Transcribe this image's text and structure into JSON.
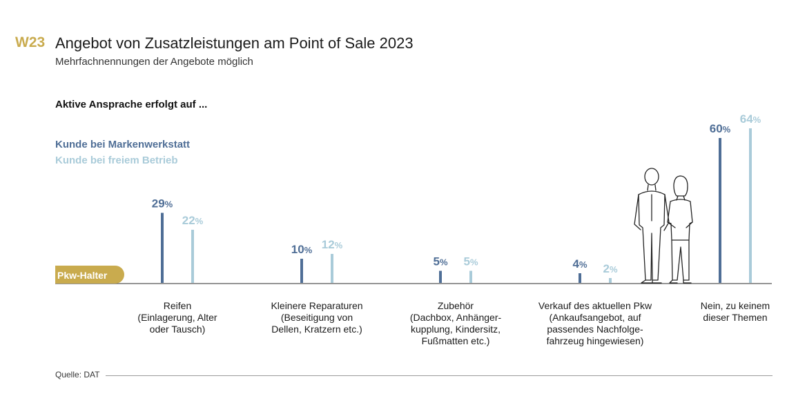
{
  "header": {
    "badge": "W23",
    "title": "Angebot von Zusatzleistungen am Point of Sale 2023",
    "subtitle": "Mehrfachnennungen der Angebote möglich",
    "lead": "Aktive Ansprache erfolgt auf ..."
  },
  "footer": {
    "source": "Quelle: DAT"
  },
  "colors": {
    "dark": "#4f6e96",
    "light": "#a9cbd9",
    "gold": "#c9ab4e",
    "axis": "#555555"
  },
  "chart_data": {
    "type": "bar",
    "baseline_label": "Pkw-Halter",
    "unit": "%",
    "ylim": [
      0,
      64
    ],
    "legend_position": "top-left",
    "categories": [
      [
        "Reifen",
        "(Einlagerung, Alter",
        "oder Tausch)"
      ],
      [
        "Kleinere Reparaturen",
        "(Beseitigung von",
        "Dellen, Kratzern etc.)"
      ],
      [
        "Zubehör",
        "(Dachbox, Anhänger-",
        "kupplung, Kindersitz,",
        "Fußmatten etc.)"
      ],
      [
        "Verkauf des aktuellen Pkw",
        "(Ankaufsangebot, auf",
        "passendes Nachfolge-",
        "fahrzeug hingewiesen)"
      ],
      [
        "Nein, zu keinem",
        "dieser Themen"
      ]
    ],
    "series": [
      {
        "name": "Kunde bei Markenwerkstatt",
        "values": [
          29,
          10,
          5,
          4,
          60
        ]
      },
      {
        "name": "Kunde bei freiem Betrieb",
        "values": [
          22,
          12,
          5,
          2,
          64
        ]
      }
    ]
  }
}
